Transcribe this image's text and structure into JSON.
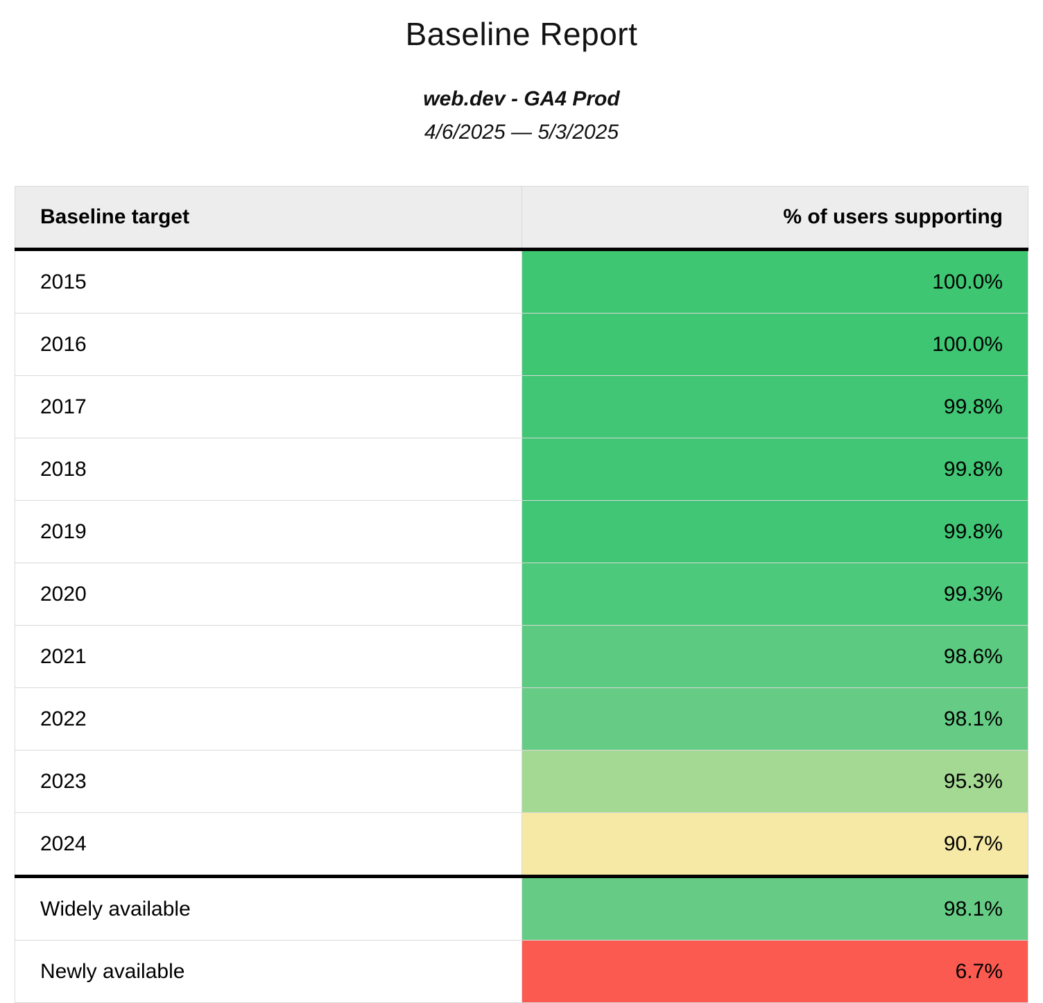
{
  "header": {
    "title": "Baseline Report",
    "subtitle": "web.dev - GA4 Prod",
    "date_range": "4/6/2025 — 5/3/2025"
  },
  "table": {
    "columns": [
      "Baseline target",
      "% of users supporting"
    ],
    "rows": [
      {
        "label": "2015",
        "value": "100.0%",
        "color": "#3ec672",
        "group": "year"
      },
      {
        "label": "2016",
        "value": "100.0%",
        "color": "#3ec672",
        "group": "year"
      },
      {
        "label": "2017",
        "value": "99.8%",
        "color": "#40c674",
        "group": "year"
      },
      {
        "label": "2018",
        "value": "99.8%",
        "color": "#40c674",
        "group": "year"
      },
      {
        "label": "2019",
        "value": "99.8%",
        "color": "#40c674",
        "group": "year"
      },
      {
        "label": "2020",
        "value": "99.3%",
        "color": "#4cc97a",
        "group": "year"
      },
      {
        "label": "2021",
        "value": "98.6%",
        "color": "#5cca80",
        "group": "year"
      },
      {
        "label": "2022",
        "value": "98.1%",
        "color": "#66cc85",
        "group": "year"
      },
      {
        "label": "2023",
        "value": "95.3%",
        "color": "#a4d994",
        "group": "year"
      },
      {
        "label": "2024",
        "value": "90.7%",
        "color": "#f6e8a5",
        "group": "year"
      },
      {
        "label": "Widely available",
        "value": "98.1%",
        "color": "#66cc85",
        "group": "summary"
      },
      {
        "label": "Newly available",
        "value": "6.7%",
        "color": "#fa5a50",
        "group": "summary"
      }
    ]
  },
  "colors": {
    "header_background": "#ededed",
    "grid_border": "#d9d9d9",
    "divider_black": "#000000",
    "good_green": "#3ec672",
    "warn_yellow": "#f6e8a5",
    "bad_red": "#fa5a50"
  },
  "chart_data": {
    "type": "table",
    "title": "Baseline Report",
    "subtitle": "web.dev - GA4 Prod",
    "date_range": "4/6/2025 — 5/3/2025",
    "columns": [
      "Baseline target",
      "% of users supporting"
    ],
    "rows": [
      [
        "2015",
        100.0
      ],
      [
        "2016",
        100.0
      ],
      [
        "2017",
        99.8
      ],
      [
        "2018",
        99.8
      ],
      [
        "2019",
        99.8
      ],
      [
        "2020",
        99.3
      ],
      [
        "2021",
        98.6
      ],
      [
        "2022",
        98.1
      ],
      [
        "2023",
        95.3
      ],
      [
        "2024",
        90.7
      ],
      [
        "Widely available",
        98.1
      ],
      [
        "Newly available",
        6.7
      ]
    ],
    "value_unit": "percent",
    "layout": "two-column table, values right-aligned, cells colored on red-yellow-green scale by percentage"
  }
}
